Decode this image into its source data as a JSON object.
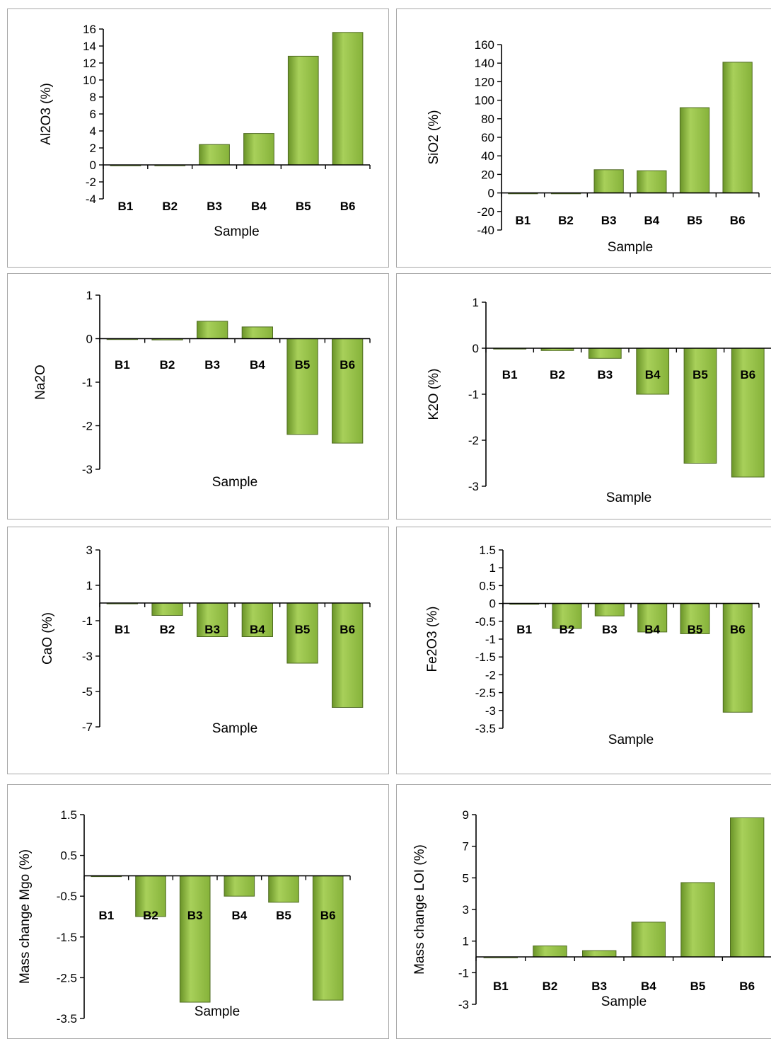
{
  "colors": {
    "bar_top": "#a8d05a",
    "bar_mid": "#86b23a",
    "bar_bottom": "#6a9428",
    "bar_edge": "#4f6b22",
    "panel_border": "#a8a8a8"
  },
  "chart_data": [
    {
      "id": "al2o3",
      "type": "bar",
      "title": "",
      "xlabel": "Sample",
      "ylabel": "Al2O3 (%)",
      "categories": [
        "B1",
        "B2",
        "B3",
        "B4",
        "B5",
        "B6"
      ],
      "values": [
        0,
        0,
        2.4,
        3.7,
        12.8,
        15.6
      ],
      "ylim": [
        -4,
        16
      ],
      "yticks": [
        -4,
        -2,
        0,
        2,
        4,
        6,
        8,
        10,
        12,
        14,
        16
      ],
      "ytick_labels": [
        "-4",
        "-2",
        "0",
        "2",
        "4",
        "6",
        "8",
        "10",
        "12",
        "14",
        "16"
      ],
      "grid": false,
      "legend": "none",
      "x_labels_position": "bottom"
    },
    {
      "id": "sio2",
      "type": "bar",
      "title": "",
      "xlabel": "Sample",
      "ylabel": "SiO2 (%)",
      "categories": [
        "B1",
        "B2",
        "B3",
        "B4",
        "B5",
        "B6"
      ],
      "values": [
        0,
        0,
        25,
        24,
        92,
        141
      ],
      "ylim": [
        -40,
        160
      ],
      "yticks": [
        -40,
        -20,
        0,
        20,
        40,
        60,
        80,
        100,
        120,
        140,
        160
      ],
      "ytick_labels": [
        "-40",
        "-20",
        "0",
        "20",
        "40",
        "60",
        "80",
        "100",
        "120",
        "140",
        "160"
      ],
      "grid": false,
      "legend": "none",
      "x_labels_position": "bottom"
    },
    {
      "id": "na2o",
      "type": "bar",
      "title": "",
      "xlabel": "Sample",
      "ylabel": "Na2O",
      "categories": [
        "B1",
        "B2",
        "B3",
        "B4",
        "B5",
        "B6"
      ],
      "values": [
        0,
        -0.03,
        0.4,
        0.27,
        -2.2,
        -2.4
      ],
      "ylim": [
        -3,
        1
      ],
      "yticks": [
        -3,
        -2,
        -1,
        0,
        1
      ],
      "ytick_labels": [
        "-3",
        "-2",
        "-1",
        "0",
        "1"
      ],
      "grid": false,
      "legend": "none",
      "x_labels_position": "below-zero"
    },
    {
      "id": "k2o",
      "type": "bar",
      "title": "",
      "xlabel": "Sample",
      "ylabel": "K2O (%)",
      "categories": [
        "B1",
        "B2",
        "B3",
        "B4",
        "B5",
        "B6"
      ],
      "values": [
        0,
        -0.05,
        -0.22,
        -1.0,
        -2.5,
        -2.8
      ],
      "ylim": [
        -3,
        1
      ],
      "yticks": [
        -3,
        -2,
        -1,
        0,
        1
      ],
      "ytick_labels": [
        "-3",
        "-2",
        "-1",
        "0",
        "1"
      ],
      "grid": false,
      "legend": "none",
      "x_labels_position": "below-zero"
    },
    {
      "id": "cao",
      "type": "bar",
      "title": "",
      "xlabel": "Sample",
      "ylabel": "CaO (%)",
      "categories": [
        "B1",
        "B2",
        "B3",
        "B4",
        "B5",
        "B6"
      ],
      "values": [
        0,
        -0.7,
        -1.9,
        -1.9,
        -3.4,
        -5.9
      ],
      "ylim": [
        -7,
        3
      ],
      "yticks": [
        -7,
        -5,
        -3,
        -1,
        1,
        3
      ],
      "ytick_labels": [
        "-7",
        "-5",
        "-3",
        "-1",
        "1",
        "3"
      ],
      "grid": false,
      "legend": "none",
      "x_labels_position": "below-zero"
    },
    {
      "id": "fe2o3",
      "type": "bar",
      "title": "",
      "xlabel": "Sample",
      "ylabel": "Fe2O3 (%)",
      "categories": [
        "B1",
        "B2",
        "B3",
        "B4",
        "B5",
        "B6"
      ],
      "values": [
        0,
        -0.7,
        -0.35,
        -0.8,
        -0.85,
        -3.05
      ],
      "ylim": [
        -3.5,
        1.5
      ],
      "yticks": [
        -3.5,
        -3,
        -2.5,
        -2,
        -1.5,
        -1,
        -0.5,
        0,
        0.5,
        1,
        1.5
      ],
      "ytick_labels": [
        "-3.5",
        "-3",
        "-2.5",
        "-2",
        "-1.5",
        "-1",
        "-0.5",
        "0",
        "0.5",
        "1",
        "1.5"
      ],
      "grid": false,
      "legend": "none",
      "x_labels_position": "below-zero"
    },
    {
      "id": "mgo",
      "type": "bar",
      "title": "",
      "xlabel": "Sample",
      "ylabel": "Mass change Mgo  (%)",
      "categories": [
        "B1",
        "B2",
        "B3",
        "B4",
        "B5",
        "B6"
      ],
      "values": [
        0,
        -1.0,
        -3.1,
        -0.5,
        -0.65,
        -3.05
      ],
      "ylim": [
        -3.5,
        1.5
      ],
      "yticks": [
        -3.5,
        -2.5,
        -1.5,
        -0.5,
        0.5,
        1.5
      ],
      "ytick_labels": [
        "-3.5",
        "-2.5",
        "-1.5",
        "-0.5",
        "0.5",
        "1.5"
      ],
      "grid": false,
      "legend": "none",
      "x_labels_position": "below-zero"
    },
    {
      "id": "loi",
      "type": "bar",
      "title": "",
      "xlabel": "Sample",
      "ylabel": "Mass change LOI (%)",
      "categories": [
        "B1",
        "B2",
        "B3",
        "B4",
        "B5",
        "B6"
      ],
      "values": [
        0,
        0.7,
        0.4,
        2.2,
        4.7,
        8.8
      ],
      "ylim": [
        -3,
        9
      ],
      "yticks": [
        -3,
        -1,
        1,
        3,
        5,
        7,
        9
      ],
      "ytick_labels": [
        "-3",
        "-1",
        "1",
        "3",
        "5",
        "7",
        "9"
      ],
      "grid": false,
      "legend": "none",
      "x_labels_position": "bottom"
    }
  ]
}
